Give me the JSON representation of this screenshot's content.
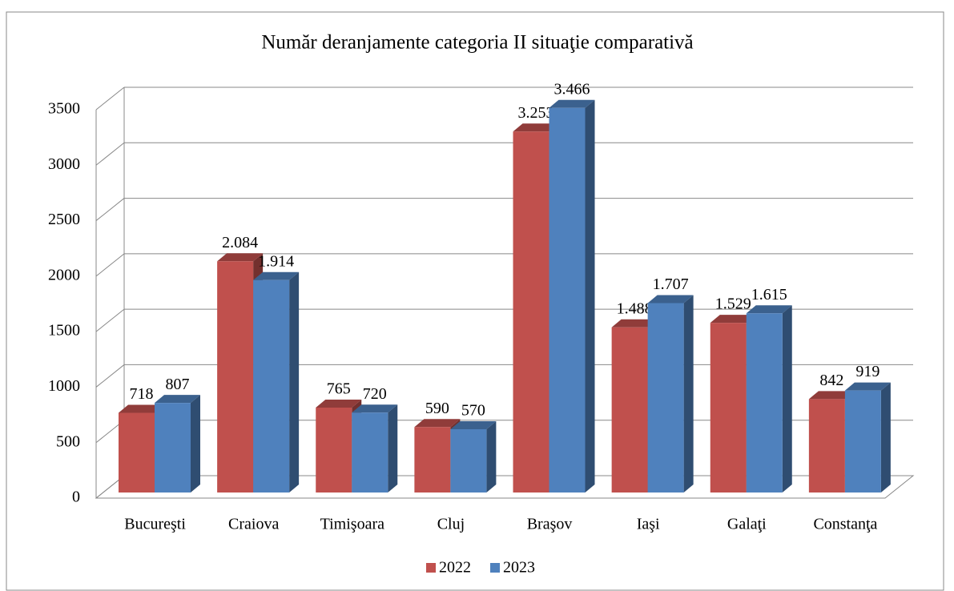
{
  "chart_data": {
    "type": "bar3d",
    "title": "Număr deranjamente categoria II situaţie comparativă",
    "categories": [
      "Bucureşti",
      "Craiova",
      "Timişoara",
      "Cluj",
      "Braşov",
      "Iaşi",
      "Galaţi",
      "Constanţa"
    ],
    "series": [
      {
        "name": "2022",
        "color": "#c0504d",
        "values": [
          718,
          2084,
          765,
          590,
          3253,
          1488,
          1529,
          842
        ],
        "value_labels": [
          "718",
          "2.084",
          "765",
          "590",
          "3.253",
          "1.488",
          "1.529",
          "842"
        ]
      },
      {
        "name": "2023",
        "color": "#4f81bd",
        "values": [
          807,
          1914,
          720,
          570,
          3466,
          1707,
          1615,
          919
        ],
        "value_labels": [
          "807",
          "1.914",
          "720",
          "570",
          "3.466",
          "1.707",
          "1.615",
          "919"
        ]
      }
    ],
    "ylim": [
      0,
      3500
    ],
    "yticks": [
      0,
      500,
      1000,
      1500,
      2000,
      2500,
      3000,
      3500
    ],
    "grid": true,
    "legend": "bottom"
  }
}
